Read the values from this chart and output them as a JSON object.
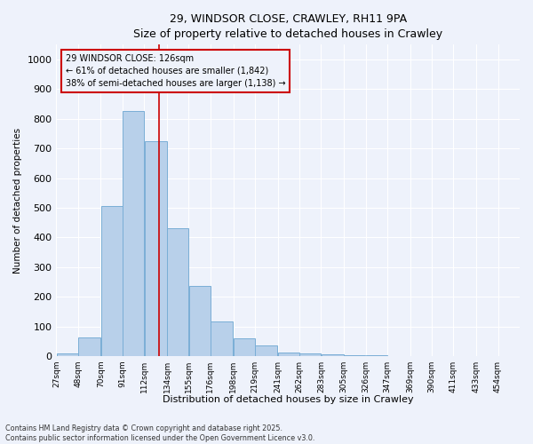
{
  "title_line1": "29, WINDSOR CLOSE, CRAWLEY, RH11 9PA",
  "title_line2": "Size of property relative to detached houses in Crawley",
  "xlabel": "Distribution of detached houses by size in Crawley",
  "ylabel": "Number of detached properties",
  "bar_left_edges": [
    27,
    48,
    70,
    91,
    112,
    134,
    155,
    176,
    198,
    219,
    241,
    262,
    283,
    305,
    326,
    347,
    369,
    390,
    411,
    433
  ],
  "bar_widths": [
    21,
    22,
    21,
    21,
    22,
    21,
    21,
    22,
    21,
    22,
    21,
    21,
    22,
    21,
    21,
    22,
    21,
    21,
    22,
    21
  ],
  "bar_heights": [
    8,
    62,
    505,
    825,
    725,
    430,
    238,
    118,
    60,
    35,
    12,
    10,
    5,
    3,
    2,
    1,
    1,
    0,
    0,
    0
  ],
  "bar_color": "#b8d0ea",
  "bar_edge_color": "#7aaed6",
  "property_size": 126,
  "property_line_color": "#cc0000",
  "annotation_text": "29 WINDSOR CLOSE: 126sqm\n← 61% of detached houses are smaller (1,842)\n38% of semi-detached houses are larger (1,138) →",
  "annotation_box_color": "#cc0000",
  "ylim": [
    0,
    1050
  ],
  "yticks": [
    0,
    100,
    200,
    300,
    400,
    500,
    600,
    700,
    800,
    900,
    1000
  ],
  "tick_labels": [
    "27sqm",
    "48sqm",
    "70sqm",
    "91sqm",
    "112sqm",
    "134sqm",
    "155sqm",
    "176sqm",
    "198sqm",
    "219sqm",
    "241sqm",
    "262sqm",
    "283sqm",
    "305sqm",
    "326sqm",
    "347sqm",
    "369sqm",
    "390sqm",
    "411sqm",
    "433sqm",
    "454sqm"
  ],
  "footnote": "Contains HM Land Registry data © Crown copyright and database right 2025.\nContains public sector information licensed under the Open Government Licence v3.0.",
  "bg_color": "#eef2fb",
  "grid_color": "#ffffff"
}
